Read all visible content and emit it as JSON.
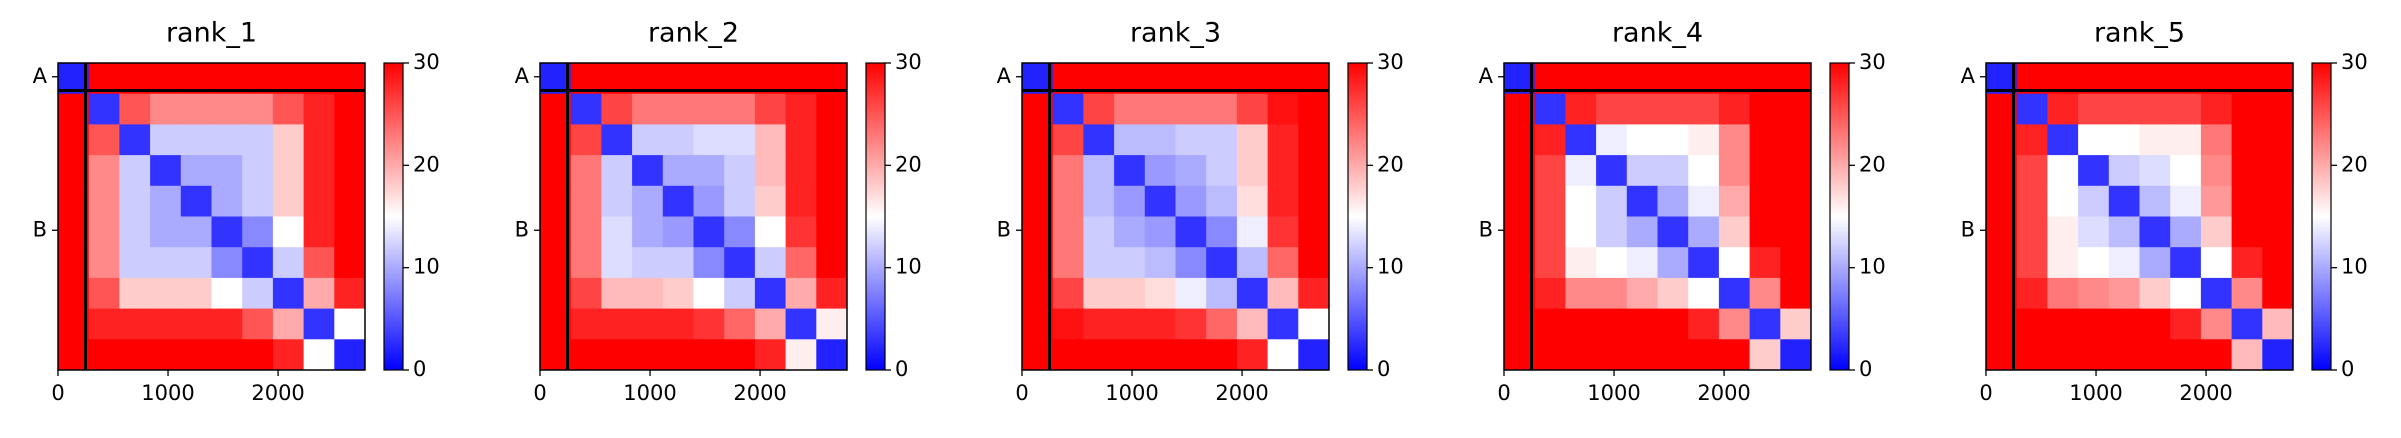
{
  "chart_data": [
    {
      "type": "heatmap",
      "title": "rank_1",
      "cmap": "bwr",
      "clim": [
        0,
        30
      ],
      "cticks": [
        0,
        10,
        20,
        30
      ],
      "xlim": [
        0,
        2790
      ],
      "xticks": [
        0,
        1000,
        2000
      ],
      "ylim": [
        2790,
        0
      ],
      "yticks": [
        {
          "value": 125,
          "label": "A"
        },
        {
          "value": 1520,
          "label": "B"
        }
      ],
      "chain_boundary": 250,
      "z": [
        [
          2,
          30,
          30,
          30,
          30,
          30,
          30,
          30,
          30,
          30
        ],
        [
          30,
          3,
          25,
          22,
          22,
          22,
          22,
          25,
          28,
          30
        ],
        [
          30,
          25,
          3,
          12,
          12,
          12,
          12,
          18,
          28,
          30
        ],
        [
          30,
          22,
          12,
          3,
          10,
          10,
          12,
          18,
          28,
          30
        ],
        [
          30,
          22,
          12,
          10,
          3,
          10,
          12,
          18,
          28,
          30
        ],
        [
          30,
          22,
          12,
          10,
          10,
          3,
          8,
          15,
          28,
          30
        ],
        [
          30,
          22,
          12,
          12,
          12,
          8,
          3,
          12,
          25,
          30
        ],
        [
          30,
          25,
          18,
          18,
          18,
          15,
          12,
          3,
          20,
          28
        ],
        [
          30,
          28,
          28,
          28,
          28,
          28,
          25,
          20,
          3,
          15
        ],
        [
          30,
          30,
          30,
          30,
          30,
          30,
          30,
          28,
          15,
          2
        ]
      ]
    },
    {
      "type": "heatmap",
      "title": "rank_2",
      "cmap": "bwr",
      "clim": [
        0,
        30
      ],
      "cticks": [
        0,
        10,
        20,
        30
      ],
      "xlim": [
        0,
        2790
      ],
      "xticks": [
        0,
        1000,
        2000
      ],
      "ylim": [
        2790,
        0
      ],
      "yticks": [
        {
          "value": 125,
          "label": "A"
        },
        {
          "value": 1520,
          "label": "B"
        }
      ],
      "chain_boundary": 250,
      "z": [
        [
          2,
          30,
          30,
          30,
          30,
          30,
          30,
          30,
          30,
          30
        ],
        [
          30,
          3,
          26,
          23,
          23,
          23,
          23,
          26,
          28,
          30
        ],
        [
          30,
          26,
          3,
          12,
          12,
          13,
          13,
          19,
          28,
          30
        ],
        [
          30,
          23,
          12,
          3,
          10,
          10,
          12,
          19,
          28,
          30
        ],
        [
          30,
          23,
          12,
          10,
          3,
          9,
          12,
          18,
          28,
          30
        ],
        [
          30,
          23,
          13,
          10,
          9,
          3,
          8,
          15,
          27,
          30
        ],
        [
          30,
          23,
          13,
          12,
          12,
          8,
          3,
          12,
          24,
          30
        ],
        [
          30,
          26,
          19,
          19,
          18,
          15,
          12,
          3,
          20,
          28
        ],
        [
          30,
          28,
          28,
          28,
          28,
          27,
          24,
          20,
          3,
          16
        ],
        [
          30,
          30,
          30,
          30,
          30,
          30,
          30,
          28,
          16,
          2
        ]
      ]
    },
    {
      "type": "heatmap",
      "title": "rank_3",
      "cmap": "bwr",
      "clim": [
        0,
        30
      ],
      "cticks": [
        0,
        10,
        20,
        30
      ],
      "xlim": [
        0,
        2790
      ],
      "xticks": [
        0,
        1000,
        2000
      ],
      "ylim": [
        2790,
        0
      ],
      "yticks": [
        {
          "value": 125,
          "label": "A"
        },
        {
          "value": 1520,
          "label": "B"
        }
      ],
      "chain_boundary": 250,
      "z": [
        [
          2,
          30,
          30,
          30,
          30,
          30,
          30,
          30,
          30,
          30
        ],
        [
          30,
          3,
          26,
          23,
          23,
          23,
          23,
          26,
          29,
          30
        ],
        [
          30,
          26,
          3,
          11,
          11,
          12,
          12,
          18,
          28,
          30
        ],
        [
          30,
          23,
          11,
          3,
          9,
          10,
          12,
          18,
          28,
          30
        ],
        [
          30,
          23,
          11,
          9,
          3,
          9,
          11,
          17,
          28,
          30
        ],
        [
          30,
          23,
          12,
          10,
          9,
          3,
          8,
          14,
          27,
          30
        ],
        [
          30,
          23,
          12,
          12,
          11,
          8,
          3,
          11,
          24,
          30
        ],
        [
          30,
          26,
          18,
          18,
          17,
          14,
          11,
          3,
          19,
          28
        ],
        [
          30,
          29,
          28,
          28,
          28,
          27,
          24,
          19,
          3,
          15
        ],
        [
          30,
          30,
          30,
          30,
          30,
          30,
          30,
          28,
          15,
          2
        ]
      ]
    },
    {
      "type": "heatmap",
      "title": "rank_4",
      "cmap": "bwr",
      "clim": [
        0,
        30
      ],
      "cticks": [
        0,
        10,
        20,
        30
      ],
      "xlim": [
        0,
        2790
      ],
      "xticks": [
        0,
        1000,
        2000
      ],
      "ylim": [
        2790,
        0
      ],
      "yticks": [
        {
          "value": 125,
          "label": "A"
        },
        {
          "value": 1520,
          "label": "B"
        }
      ],
      "chain_boundary": 250,
      "z": [
        [
          2,
          30,
          30,
          30,
          30,
          30,
          30,
          30,
          30,
          30
        ],
        [
          30,
          3,
          28,
          26,
          26,
          26,
          26,
          28,
          30,
          30
        ],
        [
          30,
          28,
          3,
          14,
          15,
          15,
          16,
          22,
          30,
          30
        ],
        [
          30,
          26,
          14,
          3,
          12,
          12,
          15,
          22,
          30,
          30
        ],
        [
          30,
          26,
          15,
          12,
          3,
          10,
          14,
          20,
          30,
          30
        ],
        [
          30,
          26,
          15,
          12,
          10,
          3,
          10,
          18,
          30,
          30
        ],
        [
          30,
          26,
          16,
          15,
          14,
          10,
          3,
          15,
          28,
          30
        ],
        [
          30,
          28,
          22,
          22,
          20,
          18,
          15,
          3,
          22,
          30
        ],
        [
          30,
          30,
          30,
          30,
          30,
          30,
          28,
          22,
          3,
          18
        ],
        [
          30,
          30,
          30,
          30,
          30,
          30,
          30,
          30,
          18,
          2
        ]
      ]
    },
    {
      "type": "heatmap",
      "title": "rank_5",
      "cmap": "bwr",
      "clim": [
        0,
        30
      ],
      "cticks": [
        0,
        10,
        20,
        30
      ],
      "xlim": [
        0,
        2790
      ],
      "xticks": [
        0,
        1000,
        2000
      ],
      "ylim": [
        2790,
        0
      ],
      "yticks": [
        {
          "value": 125,
          "label": "A"
        },
        {
          "value": 1520,
          "label": "B"
        }
      ],
      "chain_boundary": 250,
      "z": [
        [
          2,
          30,
          30,
          30,
          30,
          30,
          30,
          30,
          30,
          30
        ],
        [
          30,
          3,
          28,
          26,
          26,
          26,
          26,
          28,
          30,
          30
        ],
        [
          30,
          28,
          3,
          15,
          15,
          16,
          16,
          23,
          30,
          30
        ],
        [
          30,
          26,
          15,
          3,
          12,
          13,
          15,
          22,
          30,
          30
        ],
        [
          30,
          26,
          15,
          12,
          3,
          11,
          14,
          21,
          30,
          30
        ],
        [
          30,
          26,
          16,
          13,
          11,
          3,
          10,
          18,
          30,
          30
        ],
        [
          30,
          26,
          16,
          15,
          14,
          10,
          3,
          15,
          28,
          30
        ],
        [
          30,
          28,
          23,
          22,
          21,
          18,
          15,
          3,
          22,
          30
        ],
        [
          30,
          30,
          30,
          30,
          30,
          30,
          28,
          22,
          3,
          19
        ],
        [
          30,
          30,
          30,
          30,
          30,
          30,
          30,
          30,
          19,
          2
        ]
      ]
    }
  ]
}
